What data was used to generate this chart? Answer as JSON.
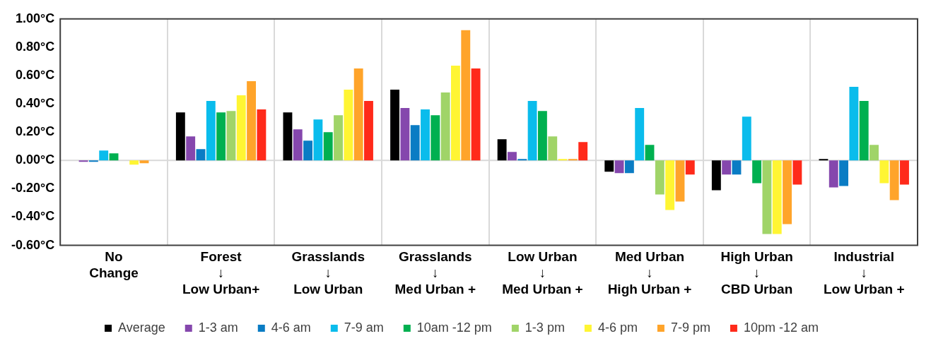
{
  "chart_data": {
    "type": "bar",
    "categories": [
      "No\nChange",
      "Forest\n↓\nLow Urban+",
      "Grasslands\n↓\nLow Urban",
      "Grasslands\n↓\nMed Urban +",
      "Low Urban\n↓\nMed Urban +",
      "Med Urban\n↓\nHigh Urban +",
      "High Urban\n↓\nCBD Urban",
      "Industrial\n↓\nLow Urban +"
    ],
    "series": [
      {
        "name": "Average",
        "color": "#000000",
        "values": [
          0,
          0.34,
          0.34,
          0.5,
          0.15,
          -0.08,
          -0.21,
          0.01
        ]
      },
      {
        "name": "1-3 am",
        "color": "#8547ad",
        "values": [
          -0.01,
          0.17,
          0.22,
          0.37,
          0.06,
          -0.09,
          -0.1,
          -0.19
        ]
      },
      {
        "name": "4-6 am",
        "color": "#0a7cc4",
        "values": [
          -0.01,
          0.08,
          0.14,
          0.25,
          0.01,
          -0.09,
          -0.1,
          -0.18
        ]
      },
      {
        "name": "7-9 am",
        "color": "#0abcec",
        "values": [
          0.07,
          0.42,
          0.29,
          0.36,
          0.42,
          0.37,
          0.31,
          0.52
        ]
      },
      {
        "name": "10am -12 pm",
        "color": "#00b050",
        "values": [
          0.05,
          0.34,
          0.2,
          0.32,
          0.35,
          0.11,
          -0.16,
          0.42
        ]
      },
      {
        "name": "1-3 pm",
        "color": "#a0d468",
        "values": [
          0,
          0.35,
          0.32,
          0.48,
          0.17,
          -0.24,
          -0.52,
          0.11
        ]
      },
      {
        "name": "4-6 pm",
        "color": "#fff533",
        "values": [
          -0.03,
          0.46,
          0.5,
          0.67,
          0.01,
          -0.35,
          -0.52,
          -0.16
        ]
      },
      {
        "name": "7-9 pm",
        "color": "#ffa42a",
        "values": [
          -0.02,
          0.56,
          0.65,
          0.92,
          0.01,
          -0.29,
          -0.45,
          -0.28
        ]
      },
      {
        "name": "10pm -12 am",
        "color": "#ff2a1a",
        "values": [
          0,
          0.36,
          0.42,
          0.65,
          0.13,
          -0.1,
          -0.17,
          -0.17
        ]
      }
    ],
    "ylim": [
      -0.6,
      1.0
    ],
    "yticks": [
      {
        "value": -0.6,
        "label": "-0.60°C"
      },
      {
        "value": -0.4,
        "label": "-0.40°C"
      },
      {
        "value": -0.2,
        "label": "-0.20°C"
      },
      {
        "value": 0,
        "label": "0.00°C"
      },
      {
        "value": 0.2,
        "label": "0.20°C"
      },
      {
        "value": 0.4,
        "label": "0.40°C"
      },
      {
        "value": 0.6,
        "label": "0.60°C"
      },
      {
        "value": 0.8,
        "label": "0.80°C"
      },
      {
        "value": 1.0,
        "label": "1.00°C"
      }
    ],
    "grid": "x",
    "ref_lines": [
      {
        "axis": "y",
        "value": 0,
        "color": "#d9d9d9"
      }
    ],
    "legend": "bottom"
  }
}
